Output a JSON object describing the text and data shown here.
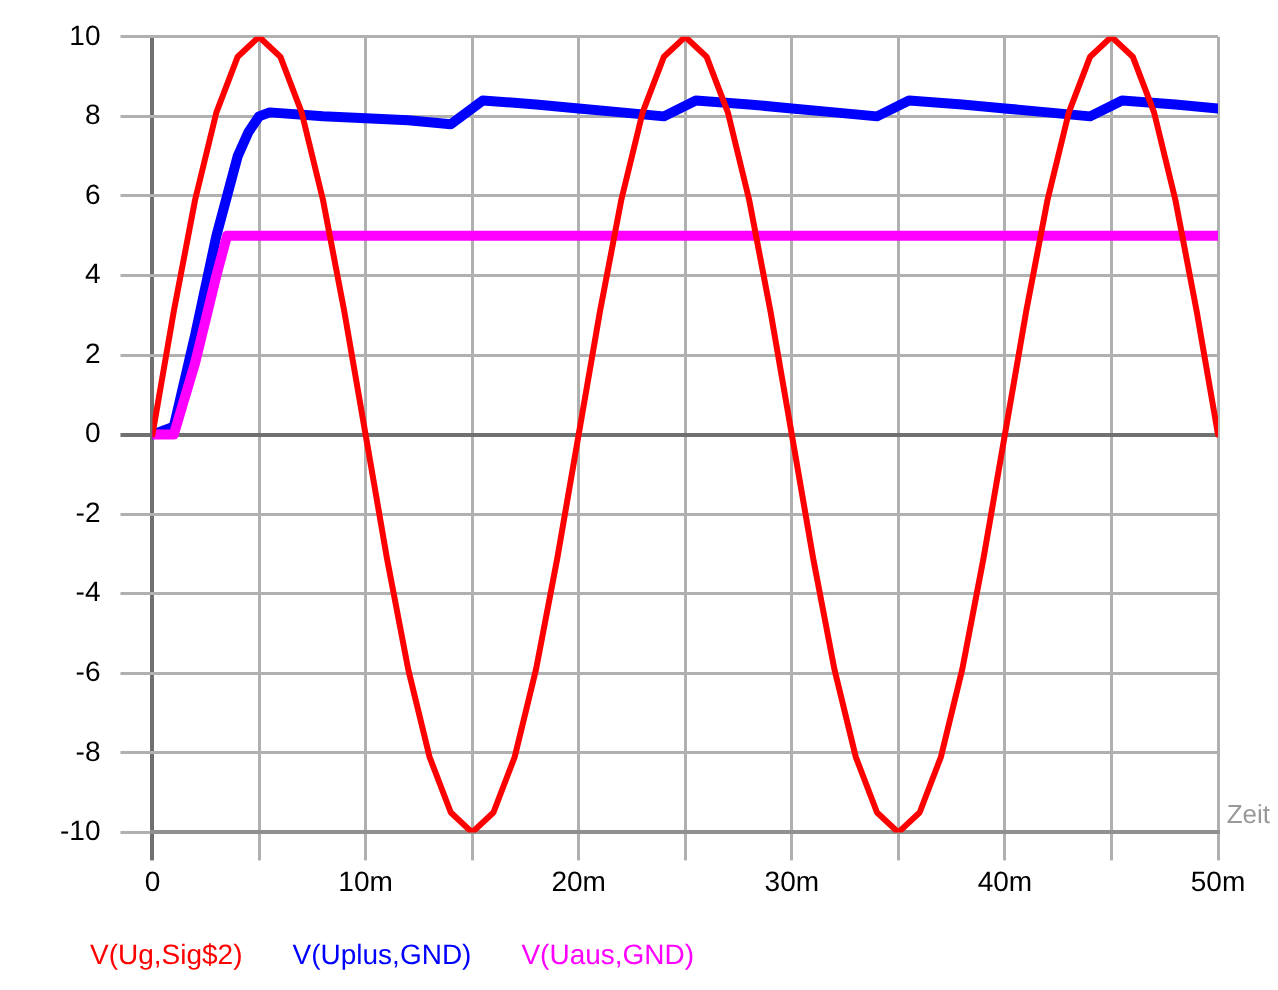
{
  "chart_data": {
    "type": "line",
    "xlabel": "Zeit",
    "x": [
      0,
      1,
      2,
      3,
      4,
      5,
      6,
      7,
      8,
      9,
      10,
      11,
      12,
      13,
      14,
      15,
      16,
      17,
      18,
      19,
      20,
      21,
      22,
      23,
      24,
      25,
      26,
      27,
      28,
      29,
      30,
      31,
      32,
      33,
      34,
      35,
      36,
      37,
      38,
      39,
      40,
      41,
      42,
      43,
      44,
      45,
      46,
      47,
      48,
      49,
      50
    ],
    "series": [
      {
        "name": "V(Ug,Sig$2)",
        "color": "#ff0000",
        "values": [
          0,
          3.1,
          5.9,
          8.1,
          9.5,
          10,
          9.5,
          8.1,
          5.9,
          3.1,
          0,
          -3.1,
          -5.9,
          -8.1,
          -9.5,
          -10,
          -9.5,
          -8.1,
          -5.9,
          -3.1,
          0,
          3.1,
          5.9,
          8.1,
          9.5,
          10,
          9.5,
          8.1,
          5.9,
          3.1,
          0,
          -3.1,
          -5.9,
          -8.1,
          -9.5,
          -10,
          -9.5,
          -8.1,
          -5.9,
          -3.1,
          0,
          3.1,
          5.9,
          8.1,
          9.5,
          10,
          9.5,
          8.1,
          5.9,
          3.1,
          0
        ]
      },
      {
        "name": "V(Uplus,GND)",
        "color": "#0000ff",
        "x": [
          0,
          1,
          2,
          3,
          4,
          4.5,
          5,
          5.5,
          8,
          10,
          12,
          14,
          15.5,
          18,
          20,
          22,
          24,
          25.5,
          28,
          30,
          32,
          34,
          35.5,
          38,
          40,
          42,
          44,
          45.5,
          48,
          50
        ],
        "values": [
          0,
          0.2,
          2.5,
          5,
          7,
          7.6,
          8,
          8.1,
          8,
          7.95,
          7.9,
          7.8,
          8.4,
          8.3,
          8.2,
          8.1,
          8,
          8.4,
          8.3,
          8.2,
          8.1,
          8,
          8.4,
          8.3,
          8.2,
          8.1,
          8,
          8.4,
          8.3,
          8.2
        ]
      },
      {
        "name": "V(Uaus,GND)",
        "color": "#ff00ff",
        "x": [
          0,
          1,
          2,
          3,
          3.5,
          10,
          20,
          30,
          40,
          50
        ],
        "values": [
          0,
          0,
          1.8,
          4,
          5,
          5,
          5,
          5,
          5,
          5
        ]
      }
    ],
    "xlim": [
      0,
      50
    ],
    "xticks": [
      0,
      {
        "value": 5,
        "label": null
      },
      {
        "value": 10,
        "label": "10m"
      },
      {
        "value": 15,
        "label": null
      },
      {
        "value": 20,
        "label": "20m"
      },
      {
        "value": 25,
        "label": null
      },
      {
        "value": 30,
        "label": "30m"
      },
      {
        "value": 35,
        "label": null
      },
      {
        "value": 40,
        "label": "40m"
      },
      {
        "value": 45,
        "label": null
      },
      {
        "value": 50,
        "label": "50m"
      }
    ],
    "ylim": [
      -10,
      10
    ],
    "yticks": [
      -10,
      -8,
      -6,
      -4,
      -2,
      0,
      2,
      4,
      6,
      8,
      10
    ],
    "grid": true,
    "legend": "bottom left",
    "marker": "none",
    "line_style": "solid"
  }
}
